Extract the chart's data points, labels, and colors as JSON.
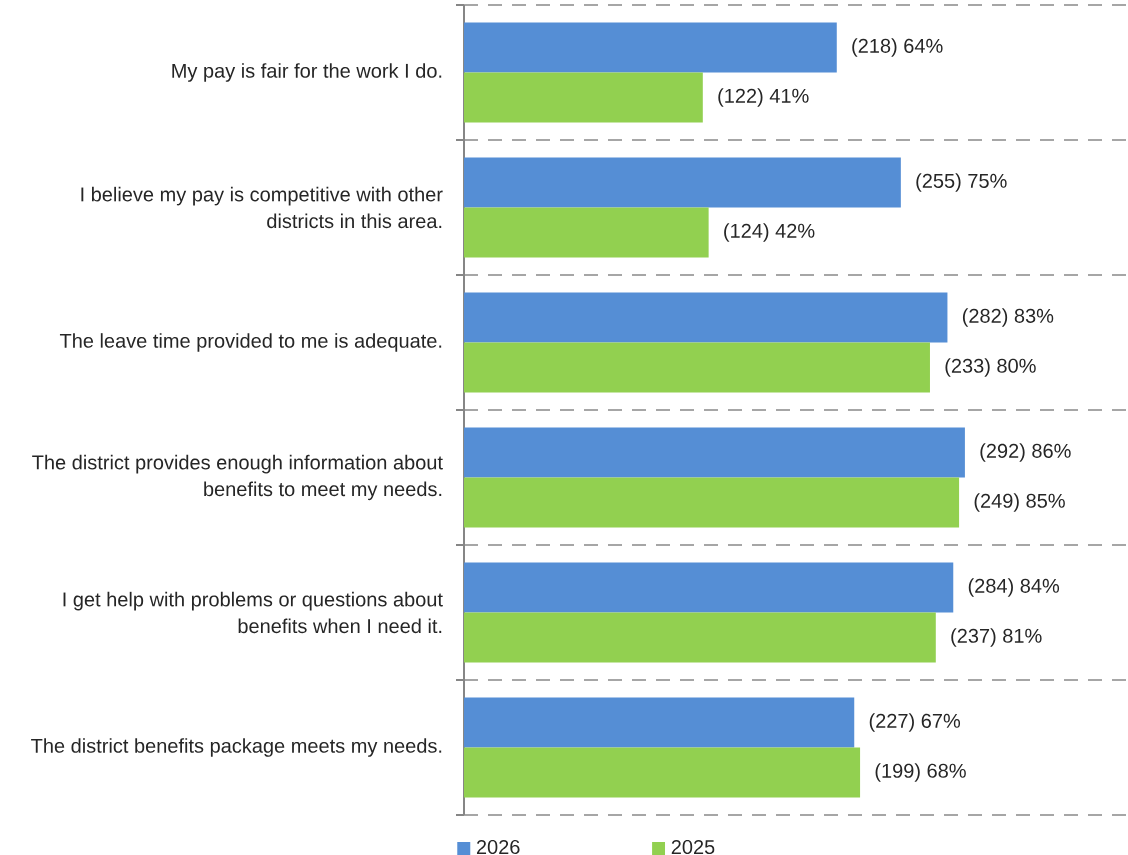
{
  "chart_data": {
    "type": "bar",
    "orientation": "horizontal",
    "categories": [
      "My pay is fair for the work I do.",
      "I believe my pay is competitive with other districts in this area.",
      "The leave time provided to me is adequate.",
      "The district provides enough information about benefits to meet my needs.",
      "I get help with problems or questions about benefits when I need it.",
      "The district benefits package meets my needs."
    ],
    "series": [
      {
        "name": "2026",
        "color": "#558ED5",
        "values": [
          64,
          75,
          83,
          86,
          84,
          67
        ],
        "value_labels": [
          "(218) 64%",
          "(255) 75%",
          "(282) 83%",
          "(292) 86%",
          "(284) 84%",
          "(227) 67%"
        ]
      },
      {
        "name": "2025",
        "color": "#92D050",
        "values": [
          41,
          42,
          80,
          85,
          81,
          68
        ],
        "value_labels": [
          "(122) 41%",
          "(124) 42%",
          "(233) 80%",
          "(249) 85%",
          "(237) 81%",
          "(199) 68%"
        ]
      }
    ],
    "xlim": [
      0,
      114
    ],
    "grid": "y",
    "legend": "bottom",
    "tick_labels": "y"
  }
}
